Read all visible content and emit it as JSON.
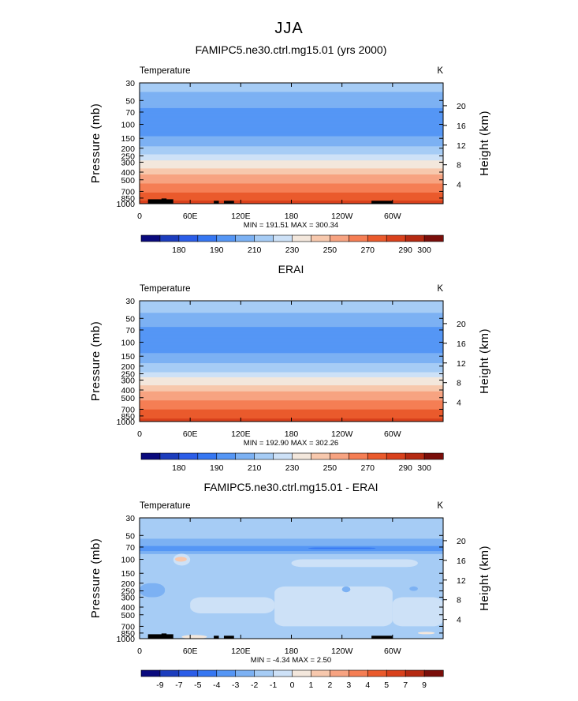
{
  "figure": {
    "supertitle": "JJA"
  },
  "chart_data": [
    {
      "type": "heatmap",
      "title": "FAMIPC5.ne30.ctrl.mg15.01 (yrs 2000)",
      "variable_label": "Temperature",
      "units": "K",
      "xlabel": "",
      "ylabel": "Pressure (mb)",
      "ylabel_right": "Height (km)",
      "x_ticks": [
        "0",
        "60E",
        "120E",
        "180",
        "120W",
        "60W"
      ],
      "x_tick_values": [
        0,
        60,
        120,
        180,
        240,
        300
      ],
      "xlim": [
        0,
        360
      ],
      "y_ticks": [
        "30",
        "50",
        "70",
        "100",
        "150",
        "200",
        "250",
        "300",
        "400",
        "500",
        "700",
        "850",
        "1000"
      ],
      "y_tick_values": [
        30,
        50,
        70,
        100,
        150,
        200,
        250,
        300,
        400,
        500,
        700,
        850,
        1000
      ],
      "ylim": [
        30,
        1000
      ],
      "y_scale": "log",
      "right_ticks": [
        "20",
        "16",
        "12",
        "8",
        "4"
      ],
      "right_tick_values": [
        20,
        16,
        12,
        8,
        4
      ],
      "min_max_text": "MIN = 191.51 MAX = 300.34",
      "min": 191.51,
      "max": 300.34,
      "profile": [
        {
          "p": 30,
          "v": 224
        },
        {
          "p": 45,
          "v": 218
        },
        {
          "p": 60,
          "v": 212
        },
        {
          "p": 70,
          "v": 205
        },
        {
          "p": 85,
          "v": 201
        },
        {
          "p": 100,
          "v": 200
        },
        {
          "p": 115,
          "v": 202
        },
        {
          "p": 130,
          "v": 207
        },
        {
          "p": 150,
          "v": 212
        },
        {
          "p": 170,
          "v": 217
        },
        {
          "p": 200,
          "v": 222
        },
        {
          "p": 230,
          "v": 227
        },
        {
          "p": 260,
          "v": 235
        },
        {
          "p": 300,
          "v": 243
        },
        {
          "p": 350,
          "v": 249
        },
        {
          "p": 400,
          "v": 257
        },
        {
          "p": 450,
          "v": 263
        },
        {
          "p": 550,
          "v": 270
        },
        {
          "p": 650,
          "v": 276
        },
        {
          "p": 750,
          "v": 281
        },
        {
          "p": 850,
          "v": 286
        },
        {
          "p": 925,
          "v": 290
        },
        {
          "p": 1000,
          "v": 293
        }
      ],
      "surface_blocks": [
        {
          "lon0": 10,
          "lon1": 40,
          "p_top": 880
        },
        {
          "lon0": 26,
          "lon1": 32,
          "p_top": 860
        },
        {
          "lon0": 88,
          "lon1": 94,
          "p_top": 920
        },
        {
          "lon0": 100,
          "lon1": 112,
          "p_top": 920
        },
        {
          "lon0": 275,
          "lon1": 300,
          "p_top": 920
        }
      ],
      "colorbar": {
        "labels": [
          "180",
          "190",
          "210",
          "230",
          "250",
          "270",
          "290",
          "300"
        ],
        "levels": [
          180,
          185,
          190,
          200,
          210,
          220,
          230,
          240,
          250,
          260,
          270,
          280,
          290,
          295,
          300
        ],
        "colors": [
          "#0a0a7d",
          "#1c3dbd",
          "#2b5de8",
          "#3677f2",
          "#5596f5",
          "#7cb1f3",
          "#a6ccf5",
          "#cde1f7",
          "#f3e7dc",
          "#f7c8ad",
          "#f7a381",
          "#f57e54",
          "#ea5a2c",
          "#d9411c",
          "#b52a12",
          "#7a0e0a"
        ]
      }
    },
    {
      "type": "heatmap",
      "title": "ERAI",
      "variable_label": "Temperature",
      "units": "K",
      "xlabel": "",
      "ylabel": "Pressure (mb)",
      "ylabel_right": "Height (km)",
      "x_ticks": [
        "0",
        "60E",
        "120E",
        "180",
        "120W",
        "60W"
      ],
      "x_tick_values": [
        0,
        60,
        120,
        180,
        240,
        300
      ],
      "xlim": [
        0,
        360
      ],
      "y_ticks": [
        "30",
        "50",
        "70",
        "100",
        "150",
        "200",
        "250",
        "300",
        "400",
        "500",
        "700",
        "850",
        "1000"
      ],
      "y_tick_values": [
        30,
        50,
        70,
        100,
        150,
        200,
        250,
        300,
        400,
        500,
        700,
        850,
        1000
      ],
      "ylim": [
        30,
        1000
      ],
      "y_scale": "log",
      "right_ticks": [
        "20",
        "16",
        "12",
        "8",
        "4"
      ],
      "right_tick_values": [
        20,
        16,
        12,
        8,
        4
      ],
      "min_max_text": "MIN = 192.90 MAX = 302.26",
      "min": 192.9,
      "max": 302.26,
      "profile": [
        {
          "p": 30,
          "v": 225
        },
        {
          "p": 45,
          "v": 219
        },
        {
          "p": 60,
          "v": 213
        },
        {
          "p": 70,
          "v": 206
        },
        {
          "p": 85,
          "v": 202
        },
        {
          "p": 100,
          "v": 201
        },
        {
          "p": 115,
          "v": 203
        },
        {
          "p": 130,
          "v": 208
        },
        {
          "p": 150,
          "v": 213
        },
        {
          "p": 170,
          "v": 218
        },
        {
          "p": 200,
          "v": 223
        },
        {
          "p": 230,
          "v": 228
        },
        {
          "p": 260,
          "v": 236
        },
        {
          "p": 300,
          "v": 244
        },
        {
          "p": 350,
          "v": 250
        },
        {
          "p": 400,
          "v": 258
        },
        {
          "p": 450,
          "v": 264
        },
        {
          "p": 550,
          "v": 271
        },
        {
          "p": 650,
          "v": 277
        },
        {
          "p": 750,
          "v": 282
        },
        {
          "p": 850,
          "v": 287
        },
        {
          "p": 925,
          "v": 291
        },
        {
          "p": 1000,
          "v": 294
        }
      ],
      "surface_blocks": [],
      "colorbar": {
        "labels": [
          "180",
          "190",
          "210",
          "230",
          "250",
          "270",
          "290",
          "300"
        ],
        "levels": [
          180,
          185,
          190,
          200,
          210,
          220,
          230,
          240,
          250,
          260,
          270,
          280,
          290,
          295,
          300
        ],
        "colors": [
          "#0a0a7d",
          "#1c3dbd",
          "#2b5de8",
          "#3677f2",
          "#5596f5",
          "#7cb1f3",
          "#a6ccf5",
          "#cde1f7",
          "#f3e7dc",
          "#f7c8ad",
          "#f7a381",
          "#f57e54",
          "#ea5a2c",
          "#d9411c",
          "#b52a12",
          "#7a0e0a"
        ]
      }
    },
    {
      "type": "heatmap",
      "title": "FAMIPC5.ne30.ctrl.mg15.01 - ERAI",
      "variable_label": "Temperature",
      "units": "K",
      "xlabel": "",
      "ylabel": "Pressure (mb)",
      "ylabel_right": "Height (km)",
      "x_ticks": [
        "0",
        "60E",
        "120E",
        "180",
        "120W",
        "60W"
      ],
      "x_tick_values": [
        0,
        60,
        120,
        180,
        240,
        300
      ],
      "xlim": [
        0,
        360
      ],
      "y_ticks": [
        "30",
        "50",
        "70",
        "100",
        "150",
        "200",
        "250",
        "300",
        "400",
        "500",
        "700",
        "850",
        "1000"
      ],
      "y_tick_values": [
        30,
        50,
        70,
        100,
        150,
        200,
        250,
        300,
        400,
        500,
        700,
        850,
        1000
      ],
      "ylim": [
        30,
        1000
      ],
      "y_scale": "log",
      "right_ticks": [
        "20",
        "16",
        "12",
        "8",
        "4"
      ],
      "right_tick_values": [
        20,
        16,
        12,
        8,
        4
      ],
      "min_max_text": "MIN = -4.34 MAX = 2.50",
      "min": -4.34,
      "max": 2.5,
      "profile": [
        {
          "p": 30,
          "v": -1.5
        },
        {
          "p": 55,
          "v": -1.5
        },
        {
          "p": 62,
          "v": -2.5
        },
        {
          "p": 75,
          "v": -3.5
        },
        {
          "p": 90,
          "v": -1.5
        },
        {
          "p": 140,
          "v": -1.5
        },
        {
          "p": 200,
          "v": -1.5
        },
        {
          "p": 300,
          "v": -1.5
        },
        {
          "p": 500,
          "v": -1.5
        },
        {
          "p": 700,
          "v": -1.5
        },
        {
          "p": 850,
          "v": -1.5
        },
        {
          "p": 1000,
          "v": -1.5
        }
      ],
      "features": [
        {
          "lon0": 0,
          "lon1": 360,
          "p0": 30,
          "p1": 55,
          "v": -1.5
        },
        {
          "lon0": 0,
          "lon1": 360,
          "p0": 55,
          "p1": 68,
          "v": -2.5
        },
        {
          "lon0": 0,
          "lon1": 360,
          "p0": 68,
          "p1": 78,
          "v": -3.5
        },
        {
          "lon0": 200,
          "lon1": 280,
          "p0": 71,
          "p1": 74,
          "v": -4.5
        },
        {
          "lon0": 40,
          "lon1": 60,
          "p0": 85,
          "p1": 120,
          "v": -0.5
        },
        {
          "lon0": 42,
          "lon1": 56,
          "p0": 93,
          "p1": 107,
          "v": 1.5
        },
        {
          "lon0": 180,
          "lon1": 330,
          "p0": 100,
          "p1": 125,
          "v": -0.5
        },
        {
          "lon0": 60,
          "lon1": 160,
          "p0": 300,
          "p1": 480,
          "v": -0.5
        },
        {
          "lon0": 160,
          "lon1": 300,
          "p0": 220,
          "p1": 700,
          "v": -0.5
        },
        {
          "lon0": 300,
          "lon1": 360,
          "p0": 300,
          "p1": 700,
          "v": -0.5
        },
        {
          "lon0": 0,
          "lon1": 30,
          "p0": 200,
          "p1": 300,
          "v": -2.5
        },
        {
          "lon0": 240,
          "lon1": 250,
          "p0": 220,
          "p1": 260,
          "v": -2.5
        },
        {
          "lon0": 320,
          "lon1": 330,
          "p0": 220,
          "p1": 250,
          "v": -2.5
        },
        {
          "lon0": 50,
          "lon1": 80,
          "p0": 900,
          "p1": 1000,
          "v": 0.5
        },
        {
          "lon0": 330,
          "lon1": 350,
          "p0": 820,
          "p1": 880,
          "v": 0.5
        }
      ],
      "surface_blocks": [
        {
          "lon0": 10,
          "lon1": 40,
          "p_top": 880
        },
        {
          "lon0": 26,
          "lon1": 32,
          "p_top": 860
        },
        {
          "lon0": 88,
          "lon1": 94,
          "p_top": 920
        },
        {
          "lon0": 100,
          "lon1": 112,
          "p_top": 920
        },
        {
          "lon0": 275,
          "lon1": 300,
          "p_top": 920
        }
      ],
      "colorbar": {
        "labels": [
          "-9",
          "-7",
          "-5",
          "-4",
          "-3",
          "-2",
          "-1",
          "0",
          "1",
          "2",
          "3",
          "4",
          "5",
          "7",
          "9"
        ],
        "levels": [
          -9,
          -7,
          -5,
          -4,
          -3,
          -2,
          -1,
          0,
          1,
          2,
          3,
          4,
          5,
          7,
          9
        ],
        "colors": [
          "#0a0a7d",
          "#1c3dbd",
          "#2b5de8",
          "#3677f2",
          "#5596f5",
          "#7cb1f3",
          "#a6ccf5",
          "#cde1f7",
          "#f3e7dc",
          "#f7c8ad",
          "#f7a381",
          "#f57e54",
          "#ea5a2c",
          "#d9411c",
          "#b52a12",
          "#7a0e0a"
        ]
      }
    }
  ]
}
